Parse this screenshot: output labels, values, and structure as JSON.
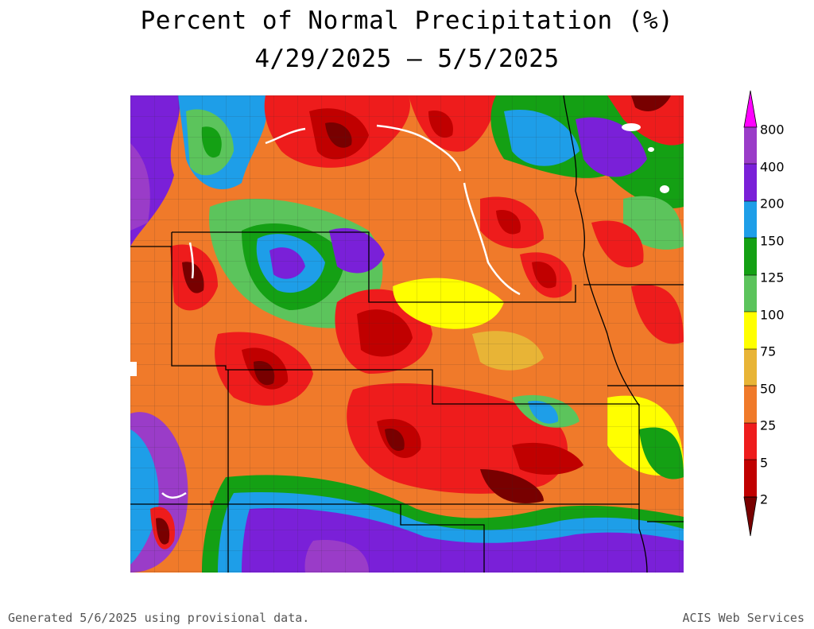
{
  "title": "Percent of Normal Precipitation (%)",
  "date_range": "4/29/2025 – 5/5/2025",
  "legend": {
    "ticks": [
      "800",
      "400",
      "200",
      "150",
      "125",
      "100",
      "75",
      "50",
      "25",
      "5",
      "2"
    ],
    "colors": {
      "above_800": "#ff00ff",
      "400_800": "#9a3cc8",
      "200_400": "#7a20d8",
      "150_200": "#1e9ee8",
      "125_150": "#14a014",
      "100_125": "#5cc45c",
      "75_100": "#ffff00",
      "50_75": "#e8b436",
      "25_50": "#f07a2a",
      "5_25": "#ee1c1c",
      "2_5": "#c00000",
      "below_2": "#780000"
    }
  },
  "footer": {
    "generated": "Generated 5/6/2025 using provisional data.",
    "credit": "ACIS Web Services"
  }
}
